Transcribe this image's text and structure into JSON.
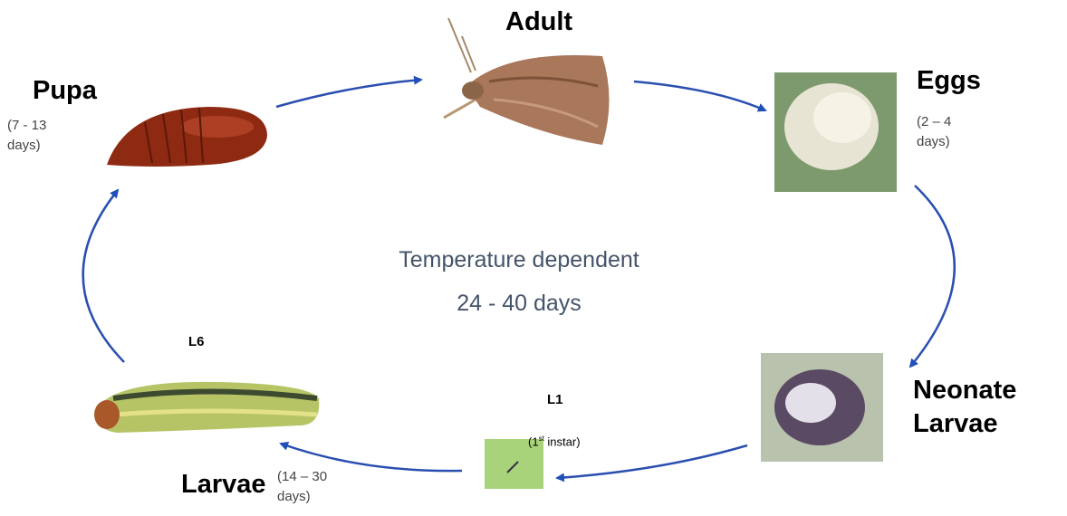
{
  "stages": {
    "adult": {
      "label": "Adult"
    },
    "eggs": {
      "label": "Eggs",
      "duration": "(2 – 4 days)"
    },
    "neonate": {
      "label_lines": [
        "Neonate",
        "Larvae"
      ]
    },
    "l1": {
      "label": "L1",
      "instar": {
        "pre": "(1",
        "sup": "st",
        "post": "instar)"
      }
    },
    "l6": {
      "label": "L6"
    },
    "larvae": {
      "label": "Larvae",
      "duration": "(14 – 30 days)"
    },
    "pupa": {
      "label": "Pupa",
      "duration": "(7 - 13 days)"
    }
  },
  "center": {
    "line1": "Temperature dependent",
    "line2": "24 - 40 days"
  }
}
